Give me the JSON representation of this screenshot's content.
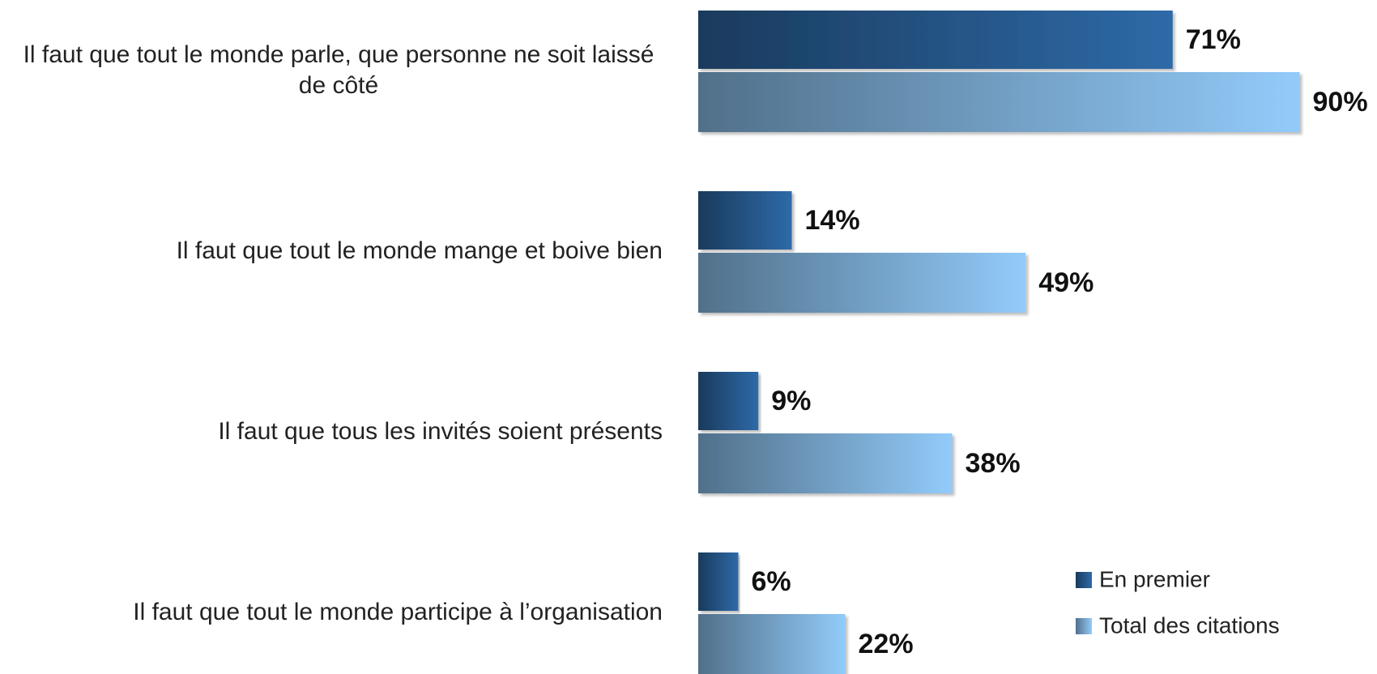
{
  "chart_data": {
    "type": "bar",
    "orientation": "horizontal",
    "categories": [
      "Il faut que tout le monde parle, que personne ne soit laissé de côté",
      "Il faut que tout le monde mange et boive bien",
      "Il faut que tous les invités soient présents",
      "Il faut que tout le monde participe à l’organisation"
    ],
    "series": [
      {
        "name": "En premier",
        "color": "#2e6aa8",
        "values": [
          71,
          14,
          9,
          6
        ],
        "value_labels": [
          "71%",
          "14%",
          "9%",
          "6%"
        ]
      },
      {
        "name": "Total des citations",
        "color": "#92cbfa",
        "values": [
          90,
          49,
          38,
          22
        ],
        "value_labels": [
          "90%",
          "49%",
          "38%",
          "22%"
        ]
      }
    ],
    "xlim": [
      0,
      100
    ],
    "legend": "bottom-right"
  }
}
